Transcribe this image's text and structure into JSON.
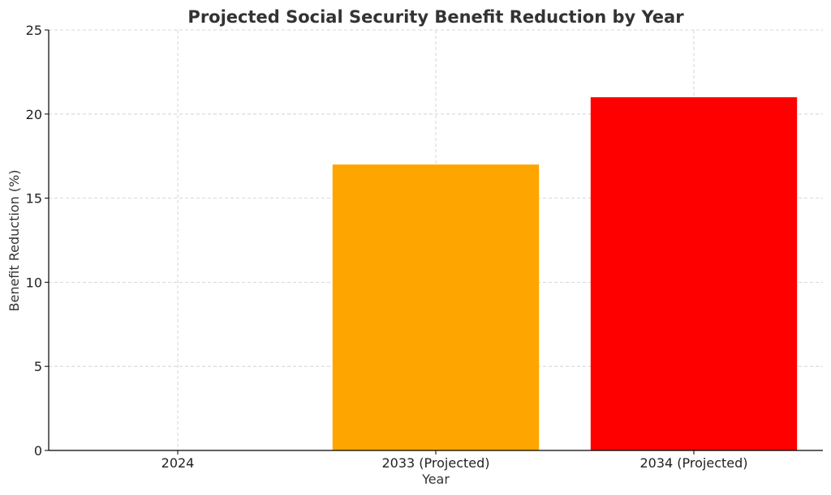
{
  "chart_data": {
    "type": "bar",
    "title": "Projected Social Security Benefit Reduction by Year",
    "xlabel": "Year",
    "ylabel": "Benefit Reduction (%)",
    "categories": [
      "2024",
      "2033 (Projected)",
      "2034 (Projected)"
    ],
    "values": [
      0,
      17,
      21
    ],
    "colors": [
      "#1f77b4",
      "#FFA500",
      "#FF0000"
    ],
    "ylim": [
      0,
      25
    ],
    "yticks": [
      0,
      5,
      10,
      15,
      20,
      25
    ],
    "grid": true,
    "legend": "none"
  }
}
